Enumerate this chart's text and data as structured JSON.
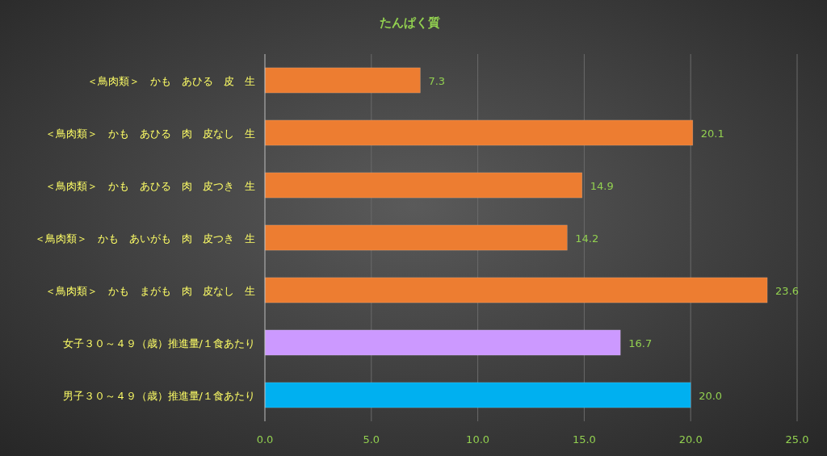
{
  "chart_data": {
    "type": "bar",
    "orientation": "horizontal",
    "title": "たんぱく質",
    "categories": [
      "＜鳥肉類＞　かも　あひる　皮　生",
      "＜鳥肉類＞　かも　あひる　肉　皮なし　生",
      "＜鳥肉類＞　かも　あひる　肉　皮つき　生",
      "＜鳥肉類＞　かも　あいがも　肉　皮つき　生",
      "＜鳥肉類＞　かも　まがも　肉　皮なし　生",
      "女子３０～４９（歳）推進量/１食あたり",
      "男子３０～４９（歳）推進量/１食あたり"
    ],
    "values": [
      7.3,
      20.1,
      14.9,
      14.2,
      23.6,
      16.7,
      20.0
    ],
    "colors": [
      "#ed7d31",
      "#ed7d31",
      "#ed7d31",
      "#ed7d31",
      "#ed7d31",
      "#cc99ff",
      "#00b0f0"
    ],
    "xlim": [
      0,
      25
    ],
    "xticks": [
      {
        "value": 0,
        "label": "0.0"
      },
      {
        "value": 5,
        "label": "5.0"
      },
      {
        "value": 10,
        "label": "10.0"
      },
      {
        "value": 15,
        "label": "15.0"
      },
      {
        "value": 20,
        "label": "20.0"
      },
      {
        "value": 25,
        "label": "25.0"
      }
    ],
    "value_labels": [
      "7.3",
      "20.1",
      "14.9",
      "14.2",
      "23.6",
      "16.7",
      "20.0"
    ],
    "grid": "x"
  }
}
